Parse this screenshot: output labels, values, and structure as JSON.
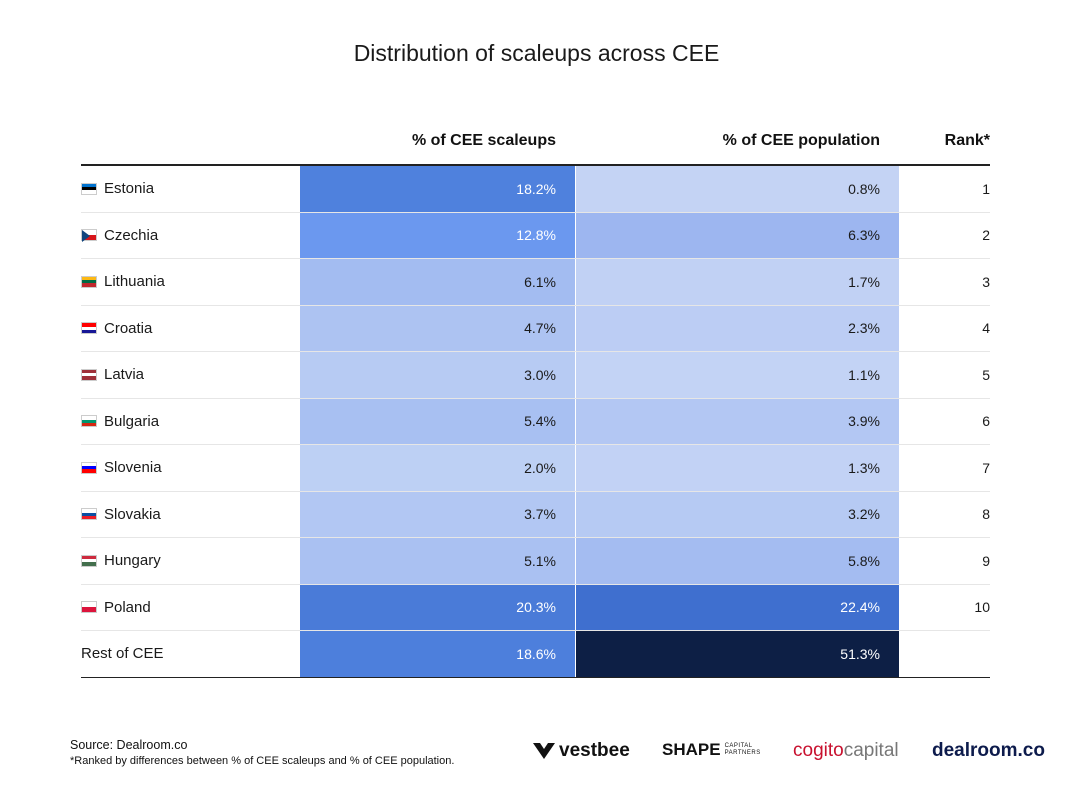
{
  "title": "Distribution of scaleups across CEE",
  "headers": {
    "scaleups": "% of CEE scaleups",
    "population": "% of CEE population",
    "rank": "Rank*"
  },
  "chart_data": {
    "type": "table",
    "title": "Distribution of scaleups across CEE",
    "columns": [
      "",
      "% of CEE scaleups",
      "% of CEE population",
      "Rank*"
    ],
    "rows": [
      {
        "country": "Estonia",
        "flag": [
          "#0072CE",
          "#000000",
          "#FFFFFF"
        ],
        "scaleups": "18.2%",
        "population": "0.8%",
        "rank": "1",
        "scale_fill": "#4f81dd",
        "pop_fill": "#c4d3f4",
        "scale_text": "#ffffff",
        "pop_text": "#1a1a1a"
      },
      {
        "country": "Czechia",
        "flag": [
          "#FFFFFF",
          "#D7141A"
        ],
        "flag_triangle": "#11457E",
        "scaleups": "12.8%",
        "population": "6.3%",
        "rank": "2",
        "scale_fill": "#6b98ef",
        "pop_fill": "#9db6f0",
        "scale_text": "#ffffff",
        "pop_text": "#1a1a1a"
      },
      {
        "country": "Lithuania",
        "flag": [
          "#FDB913",
          "#006A44",
          "#C1272D"
        ],
        "scaleups": "6.1%",
        "population": "1.7%",
        "rank": "3",
        "scale_fill": "#a3bcf1",
        "pop_fill": "#c1d1f4",
        "scale_text": "#1a1a1a",
        "pop_text": "#1a1a1a"
      },
      {
        "country": "Croatia",
        "flag": [
          "#FF0000",
          "#FFFFFF",
          "#171796"
        ],
        "scaleups": "4.7%",
        "population": "2.3%",
        "rank": "4",
        "scale_fill": "#adc3f2",
        "pop_fill": "#bccdf4",
        "scale_text": "#1a1a1a",
        "pop_text": "#1a1a1a"
      },
      {
        "country": "Latvia",
        "flag": [
          "#9E3039",
          "#FFFFFF",
          "#9E3039"
        ],
        "scaleups": "3.0%",
        "population": "1.1%",
        "rank": "5",
        "scale_fill": "#b7cbf3",
        "pop_fill": "#c3d3f5",
        "scale_text": "#1a1a1a",
        "pop_text": "#1a1a1a"
      },
      {
        "country": "Bulgaria",
        "flag": [
          "#FFFFFF",
          "#00966E",
          "#D62612"
        ],
        "scaleups": "5.4%",
        "population": "3.9%",
        "rank": "6",
        "scale_fill": "#a8c0f2",
        "pop_fill": "#b3c7f3",
        "scale_text": "#1a1a1a",
        "pop_text": "#1a1a1a"
      },
      {
        "country": "Slovenia",
        "flag": [
          "#FFFFFF",
          "#0000FF",
          "#FF0000"
        ],
        "scaleups": "2.0%",
        "population": "1.3%",
        "rank": "7",
        "scale_fill": "#bdd0f4",
        "pop_fill": "#c2d2f5",
        "scale_text": "#1a1a1a",
        "pop_text": "#1a1a1a"
      },
      {
        "country": "Slovakia",
        "flag": [
          "#FFFFFF",
          "#0B4EA2",
          "#EE1C25"
        ],
        "scaleups": "3.7%",
        "population": "3.2%",
        "rank": "8",
        "scale_fill": "#b2c7f3",
        "pop_fill": "#b6caf3",
        "scale_text": "#1a1a1a",
        "pop_text": "#1a1a1a"
      },
      {
        "country": "Hungary",
        "flag": [
          "#CD2A3E",
          "#FFFFFF",
          "#436F4D"
        ],
        "scaleups": "5.1%",
        "population": "5.8%",
        "rank": "9",
        "scale_fill": "#aac1f2",
        "pop_fill": "#a4bcf1",
        "scale_text": "#1a1a1a",
        "pop_text": "#1a1a1a"
      },
      {
        "country": "Poland",
        "flag": [
          "#FFFFFF",
          "#DC143C"
        ],
        "scaleups": "20.3%",
        "population": "22.4%",
        "rank": "10",
        "scale_fill": "#4a7bd8",
        "pop_fill": "#3f6fcf",
        "scale_text": "#ffffff",
        "pop_text": "#ffffff"
      },
      {
        "country": "Rest of CEE",
        "flag": [],
        "scaleups": "18.6%",
        "population": "51.3%",
        "rank": "",
        "scale_fill": "#4d7fdc",
        "pop_fill": "#0d1f45",
        "scale_text": "#ffffff",
        "pop_text": "#ffffff"
      }
    ]
  },
  "footer": {
    "source": "Source:  Dealroom.co",
    "note": "*Ranked by differences between % of CEE scaleups and % of CEE population."
  },
  "logos": {
    "vestbee": "vestbee",
    "shape": "SHAPE",
    "shape_sub1": "CAPITAL",
    "shape_sub2": "PARTNERS",
    "cogito_a": "cogito",
    "cogito_b": "capital",
    "dealroom": "dealroom.co"
  }
}
